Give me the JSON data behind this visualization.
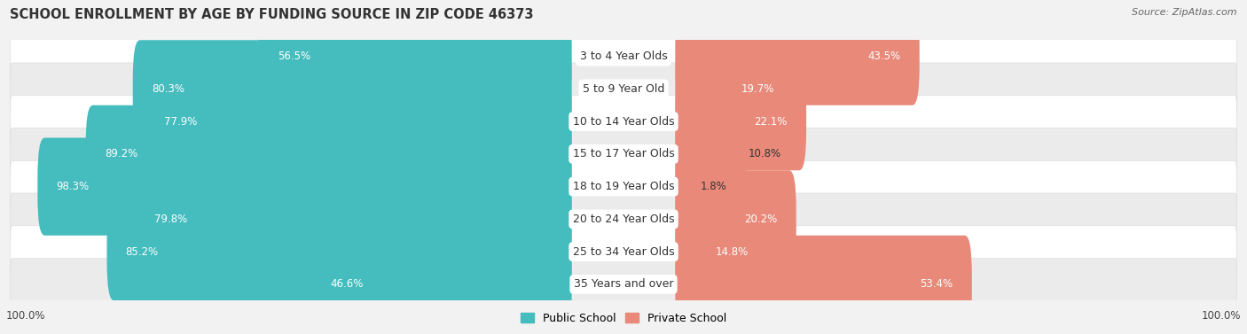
{
  "title": "SCHOOL ENROLLMENT BY AGE BY FUNDING SOURCE IN ZIP CODE 46373",
  "source": "Source: ZipAtlas.com",
  "categories": [
    "3 to 4 Year Olds",
    "5 to 9 Year Old",
    "10 to 14 Year Olds",
    "15 to 17 Year Olds",
    "18 to 19 Year Olds",
    "20 to 24 Year Olds",
    "25 to 34 Year Olds",
    "35 Years and over"
  ],
  "public_values": [
    56.5,
    80.3,
    77.9,
    89.2,
    98.3,
    79.8,
    85.2,
    46.6
  ],
  "private_values": [
    43.5,
    19.7,
    22.1,
    10.8,
    1.8,
    20.2,
    14.8,
    53.4
  ],
  "public_color": "#45BCBE",
  "private_color": "#E8897A",
  "private_color_light": "#F0B0A8",
  "bg_color": "#f2f2f2",
  "row_colors": [
    "#ffffff",
    "#ebebeb"
  ],
  "title_fontsize": 10.5,
  "label_fontsize": 9,
  "value_fontsize": 8.5,
  "legend_fontsize": 9,
  "source_fontsize": 8,
  "footer_labels": [
    "100.0%",
    "100.0%"
  ]
}
